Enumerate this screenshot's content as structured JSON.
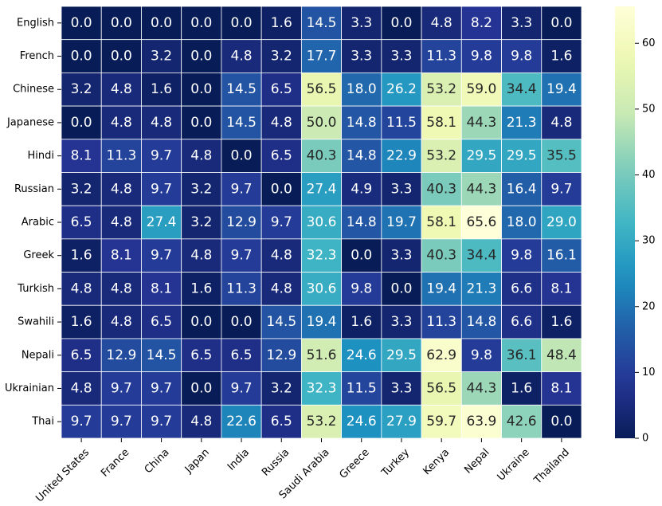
{
  "chart_data": {
    "type": "heatmap",
    "title": "",
    "xlabel": "",
    "ylabel": "",
    "x_categories": [
      "United States",
      "France",
      "China",
      "Japan",
      "India",
      "Russia",
      "Saudi Arabia",
      "Greece",
      "Turkey",
      "Kenya",
      "Nepal",
      "Ukraine",
      "Thailand"
    ],
    "y_categories": [
      "English",
      "French",
      "Chinese",
      "Japanese",
      "Hindi",
      "Russian",
      "Arabic",
      "Greek",
      "Turkish",
      "Swahili",
      "Nepali",
      "Ukrainian",
      "Thai"
    ],
    "values": [
      [
        0.0,
        0.0,
        0.0,
        0.0,
        0.0,
        1.6,
        14.5,
        3.3,
        0.0,
        4.8,
        8.2,
        3.3,
        0.0
      ],
      [
        0.0,
        0.0,
        3.2,
        0.0,
        4.8,
        3.2,
        17.7,
        3.3,
        3.3,
        11.3,
        9.8,
        9.8,
        1.6
      ],
      [
        3.2,
        4.8,
        1.6,
        0.0,
        14.5,
        6.5,
        56.5,
        18.0,
        26.2,
        53.2,
        59.0,
        34.4,
        19.4
      ],
      [
        0.0,
        4.8,
        4.8,
        0.0,
        14.5,
        4.8,
        50.0,
        14.8,
        11.5,
        58.1,
        44.3,
        21.3,
        4.8
      ],
      [
        8.1,
        11.3,
        9.7,
        4.8,
        0.0,
        6.5,
        40.3,
        14.8,
        22.9,
        53.2,
        29.5,
        29.5,
        35.5
      ],
      [
        3.2,
        4.8,
        9.7,
        3.2,
        9.7,
        0.0,
        27.4,
        4.9,
        3.3,
        40.3,
        44.3,
        16.4,
        9.7
      ],
      [
        6.5,
        4.8,
        27.4,
        3.2,
        12.9,
        9.7,
        30.6,
        14.8,
        19.7,
        58.1,
        65.6,
        18.0,
        29.0
      ],
      [
        1.6,
        8.1,
        9.7,
        4.8,
        9.7,
        4.8,
        32.3,
        0.0,
        3.3,
        40.3,
        34.4,
        9.8,
        16.1
      ],
      [
        4.8,
        4.8,
        8.1,
        1.6,
        11.3,
        4.8,
        30.6,
        9.8,
        0.0,
        19.4,
        21.3,
        6.6,
        8.1
      ],
      [
        1.6,
        4.8,
        6.5,
        0.0,
        0.0,
        14.5,
        19.4,
        1.6,
        3.3,
        11.3,
        14.8,
        6.6,
        1.6
      ],
      [
        6.5,
        12.9,
        14.5,
        6.5,
        6.5,
        12.9,
        51.6,
        24.6,
        29.5,
        62.9,
        9.8,
        36.1,
        48.4
      ],
      [
        4.8,
        9.7,
        9.7,
        0.0,
        9.7,
        3.2,
        32.3,
        11.5,
        3.3,
        56.5,
        44.3,
        1.6,
        8.1
      ],
      [
        9.7,
        9.7,
        9.7,
        4.8,
        22.6,
        6.5,
        53.2,
        24.6,
        27.9,
        59.7,
        63.9,
        42.6,
        0.0
      ]
    ],
    "colormap": "YlGnBu",
    "vmin": 0,
    "vmax": 65.6,
    "colorbar_ticks": [
      "0",
      "10",
      "20",
      "30",
      "40",
      "50",
      "60"
    ],
    "colorbar_tick_values": [
      0,
      10,
      20,
      30,
      40,
      50,
      60
    ],
    "annotation_format": "0.0",
    "cell_border_color": "#ffffff"
  }
}
